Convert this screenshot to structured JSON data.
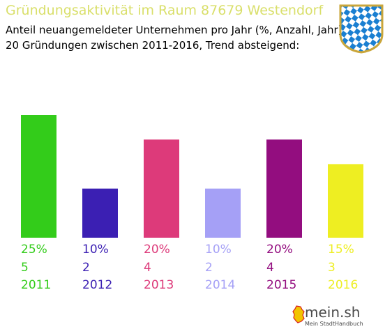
{
  "header": {
    "title": "Gründungsaktivität im Raum 87679 Westendorf",
    "subtitle_line1": "Anteil neuangemeldeter Unternehmen pro Jahr (%, Anzahl, Jahr)",
    "subtitle_line2": "20 Gründungen zwischen 2011-2016, Trend absteigend:"
  },
  "crest": {
    "icon": "bavarian-coat-of-arms-icon",
    "colors": [
      "#1a7fd1",
      "#ffffff",
      "#caa63a"
    ]
  },
  "logo": {
    "name": "mein.sh",
    "tagline": "Mein StadtHandbuch",
    "icon": "germany-map-icon"
  },
  "chart_data": {
    "type": "bar",
    "title": "Gründungsaktivität im Raum 87679 Westendorf",
    "categories": [
      "2011",
      "2012",
      "2013",
      "2014",
      "2015",
      "2016"
    ],
    "values": [
      25,
      10,
      20,
      10,
      20,
      15
    ],
    "counts": [
      5,
      2,
      4,
      2,
      4,
      3
    ],
    "percent_labels": [
      "25%",
      "10%",
      "20%",
      "10%",
      "20%",
      "15%"
    ],
    "colors": [
      "#33cc1a",
      "#3b1fb3",
      "#dd3a7a",
      "#a5a0f6",
      "#930d7f",
      "#eeee22"
    ],
    "ylim": [
      0,
      25
    ],
    "grid": false,
    "legend": "none"
  }
}
